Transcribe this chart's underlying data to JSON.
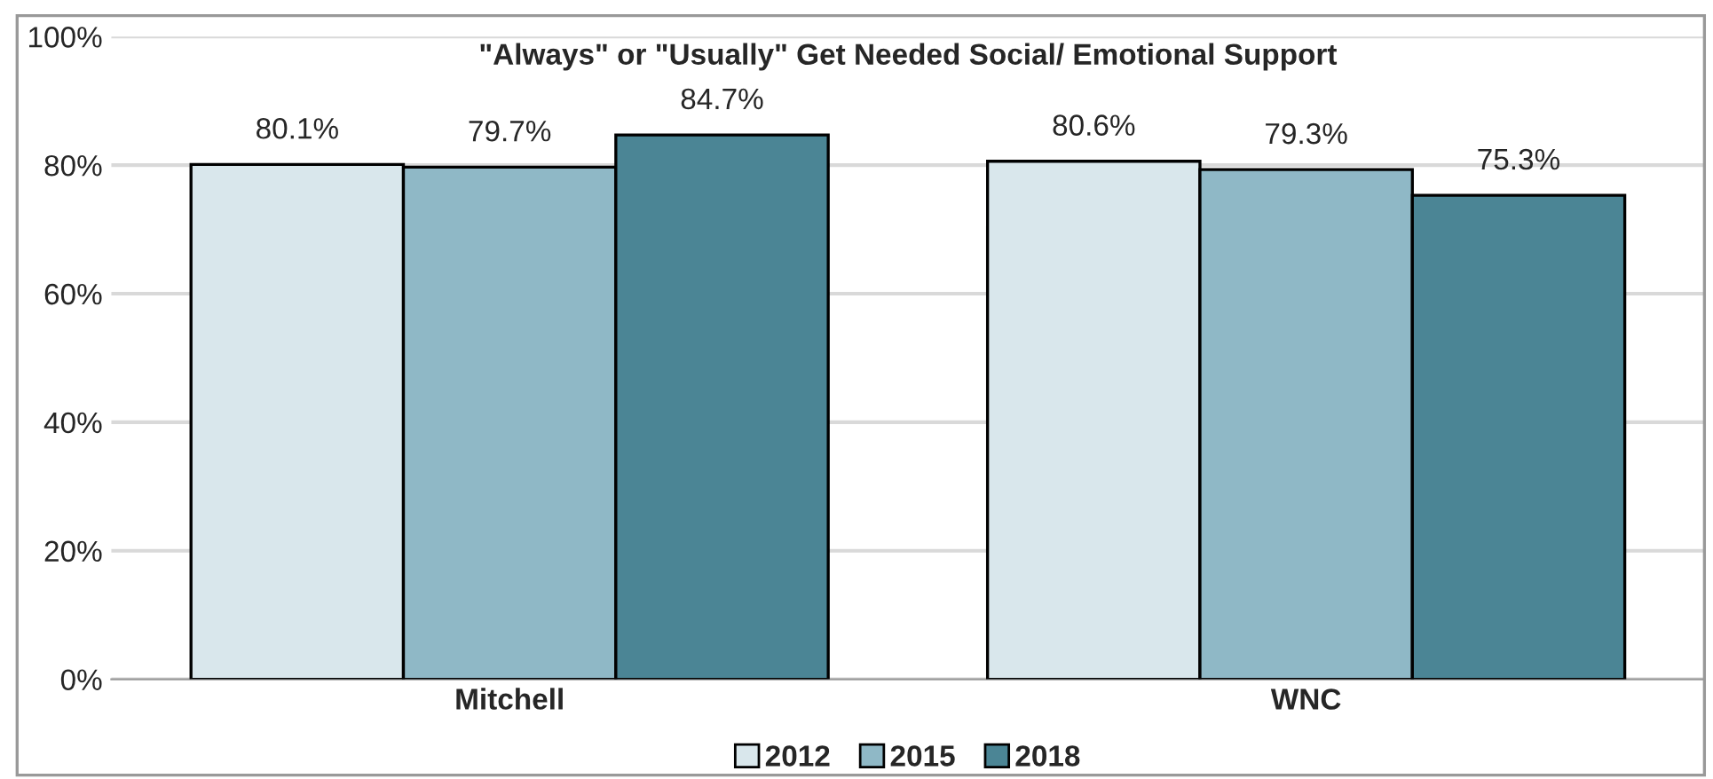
{
  "chart_data": {
    "type": "bar",
    "title": "\"Always\" or \"Usually\" Get Needed Social/ Emotional Support",
    "categories": [
      "Mitchell",
      "WNC"
    ],
    "series": [
      {
        "name": "2012",
        "color": "#d9e7ec",
        "values": [
          80.1,
          80.6
        ],
        "value_labels": [
          "80.1%",
          "80.6%"
        ]
      },
      {
        "name": "2015",
        "color": "#8fb8c6",
        "values": [
          79.7,
          79.3
        ],
        "value_labels": [
          "79.7%",
          "79.3%"
        ]
      },
      {
        "name": "2018",
        "color": "#4b8595",
        "values": [
          84.7,
          75.3
        ],
        "value_labels": [
          "84.7%",
          "75.3%"
        ]
      }
    ],
    "ylim": [
      0,
      100
    ],
    "yticks": [
      {
        "value": 0,
        "label": "0%"
      },
      {
        "value": 20,
        "label": "20%"
      },
      {
        "value": 40,
        "label": "40%"
      },
      {
        "value": 60,
        "label": "60%"
      },
      {
        "value": 80,
        "label": "80%"
      },
      {
        "value": 100,
        "label": "100%"
      }
    ],
    "grid": "y",
    "legend": "bottom"
  }
}
